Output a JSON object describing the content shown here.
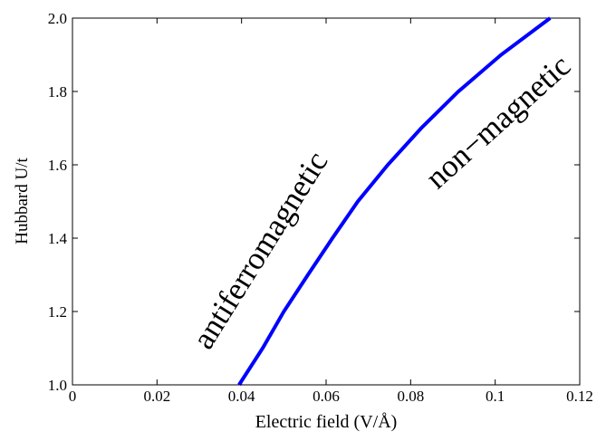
{
  "chart_data": {
    "type": "line",
    "x_label": "Electric field  (V/Å)",
    "y_label": "Hubbard  U/t",
    "annotations": [
      "antiferromagnetic",
      "non−magnetic"
    ],
    "series": [
      {
        "color": "#0000ff",
        "x": [
          0.0394,
          0.045,
          0.05,
          0.0557,
          0.0615,
          0.0675,
          0.0746,
          0.0825,
          0.0913,
          0.1014,
          0.113
        ],
        "values": [
          1.0,
          1.1,
          1.2,
          1.3,
          1.4,
          1.5,
          1.6,
          1.7,
          1.8,
          1.9,
          2.0
        ]
      }
    ],
    "xlim": [
      0,
      0.12
    ],
    "xticks": [
      0,
      0.02,
      0.04,
      0.06,
      0.08,
      0.1,
      0.12
    ],
    "ylim": [
      1,
      2
    ],
    "yticks": [
      {
        "value": 1,
        "label": "1.0"
      },
      1.2,
      1.4,
      1.6,
      1.8,
      {
        "value": 2,
        "label": "2.0"
      }
    ]
  }
}
